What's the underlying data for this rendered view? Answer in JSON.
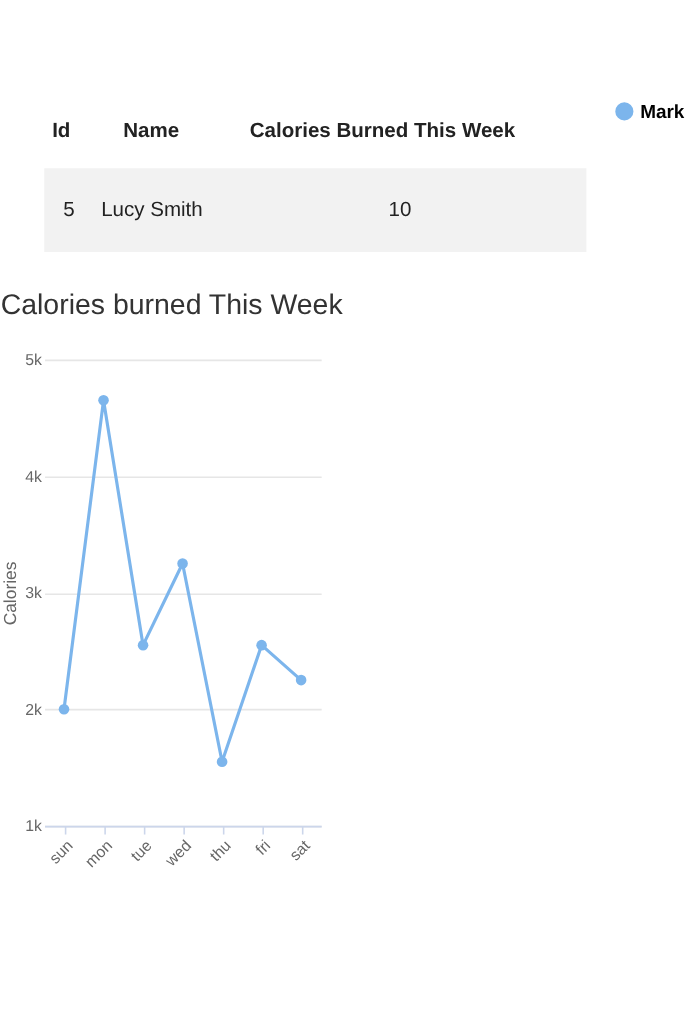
{
  "chart_data": [
    {
      "type": "other",
      "annotations": [
        "Id",
        "Name",
        "Calories Burned This Week",
        "5",
        "Lucy Smith",
        "10"
      ]
    },
    {
      "type": "line",
      "title": "Calories burned This Week",
      "ylabel": "Calories",
      "categories": [
        "sun",
        "mon",
        "tue",
        "wed",
        "thu",
        "fri",
        "sat"
      ],
      "series": [
        {
          "name": "Mark",
          "color": "#7cb5ec",
          "values": [
            2000,
            4650,
            2550,
            3250,
            1550,
            2550,
            2250
          ]
        }
      ],
      "ylim": [
        1000,
        5000
      ],
      "yticks": [
        {
          "value": 1000,
          "label": "1k"
        },
        {
          "value": 2000,
          "label": "2k"
        },
        {
          "value": 3000,
          "label": "3k"
        },
        {
          "value": 4000,
          "label": "4k"
        },
        {
          "value": 5000,
          "label": "5k"
        }
      ],
      "grid": "y",
      "legend": "right",
      "marker": "circle"
    }
  ]
}
